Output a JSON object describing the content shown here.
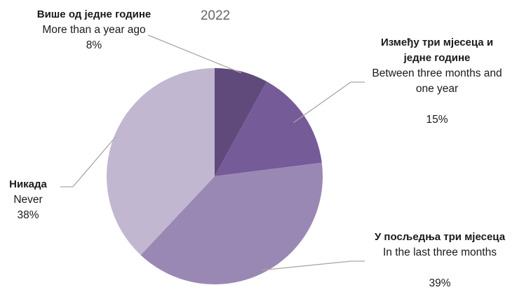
{
  "chart_data": {
    "type": "pie",
    "title": "2022",
    "start_angle_deg": 0,
    "direction": "clockwise",
    "slices": [
      {
        "label_native": "Више од једне године",
        "label_english": "More than a year ago",
        "value": 8,
        "value_label": "8%",
        "color": "#604a7b"
      },
      {
        "label_native": "Између три мјесеца и једне године",
        "label_english": "Between three months and one year",
        "value": 15,
        "value_label": "15%",
        "color": "#755b97"
      },
      {
        "label_native": "У посљедња три мјесеца",
        "label_english": "In the last three months",
        "value": 39,
        "value_label": "39%",
        "color": "#9a88b4"
      },
      {
        "label_native": "Никада",
        "label_english": "Never",
        "value": 38,
        "value_label": "38%",
        "color": "#c2b7d0"
      }
    ],
    "legend": "none"
  }
}
